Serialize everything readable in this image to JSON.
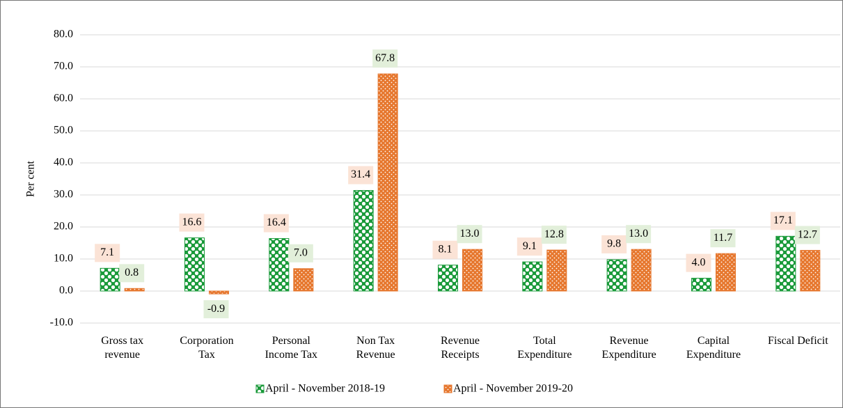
{
  "chart_data": {
    "type": "bar",
    "y_label": "Per cent",
    "categories": [
      "Gross tax revenue",
      "Corporation Tax",
      "Personal Income Tax",
      "Non Tax Revenue",
      "Revenue Receipts",
      "Total Expenditure",
      "Revenue Expenditure",
      "Capital Expenditure",
      "Fiscal Deficit"
    ],
    "series": [
      {
        "name": "April - November 2018-19",
        "color": "#1a9a3a",
        "label_color": "#fbe3d6",
        "values": [
          7.1,
          16.6,
          16.4,
          31.4,
          8.1,
          9.1,
          9.8,
          4.0,
          17.1
        ],
        "value_labels": [
          "7.1",
          "16.6",
          "16.4",
          "31.4",
          "8.1",
          "9.1",
          "9.8",
          "4.0",
          "17.1"
        ]
      },
      {
        "name": "April - November 2019-20",
        "color": "#e6772e",
        "label_color": "#e2efda",
        "values": [
          0.8,
          -0.9,
          7.0,
          67.8,
          13.0,
          12.8,
          13.0,
          11.7,
          12.7
        ],
        "value_labels": [
          "0.8",
          "-0.9",
          "7.0",
          "67.8",
          "13.0",
          "12.8",
          "13.0",
          "11.7",
          "12.7"
        ]
      }
    ],
    "ylim": [
      -10,
      80
    ],
    "yticks": [
      {
        "value": -10,
        "label": "-10.0"
      },
      {
        "value": 0,
        "label": "0.0"
      },
      {
        "value": 10,
        "label": "10.0"
      },
      {
        "value": 20,
        "label": "20.0"
      },
      {
        "value": 30,
        "label": "30.0"
      },
      {
        "value": 40,
        "label": "40.0"
      },
      {
        "value": 50,
        "label": "50.0"
      },
      {
        "value": 60,
        "label": "60.0"
      },
      {
        "value": 70,
        "label": "70.0"
      },
      {
        "value": 80,
        "label": "80.0"
      }
    ],
    "grid": true
  }
}
